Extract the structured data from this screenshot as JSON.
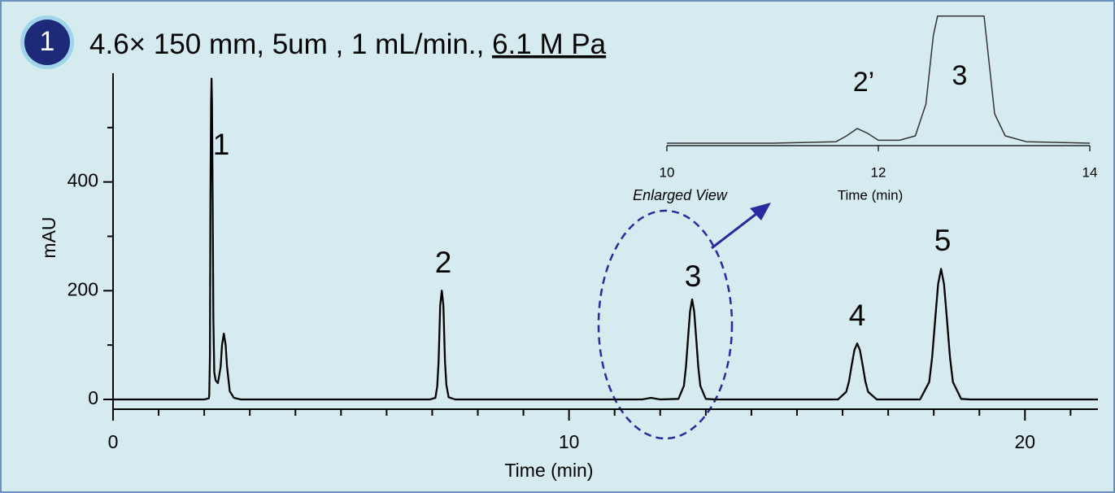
{
  "chart_data": [
    {
      "type": "line",
      "badge": "1",
      "title": "4.6× 150 mm, 5um , 1 mL/min., ",
      "title_underlined": "6.1 M Pa",
      "xlabel": "Time (min)",
      "ylabel": "mAU",
      "color": "#000000",
      "xlim": [
        0,
        21.6
      ],
      "xticks": [
        0,
        10,
        20
      ],
      "xminorticks": [
        1,
        2,
        3,
        4,
        5,
        6,
        7,
        8,
        9,
        11,
        12,
        13,
        14,
        15,
        16,
        17,
        18,
        19,
        21
      ],
      "ylim": [
        -18,
        600
      ],
      "yticks": [
        0,
        200,
        400
      ],
      "yminorticks": [
        100,
        300,
        500
      ],
      "annotations": [
        "1",
        "2",
        "3",
        "4",
        "5"
      ],
      "x": [
        0,
        2.0,
        2.1,
        2.11,
        2.125,
        2.135,
        2.15,
        2.16,
        2.17,
        2.185,
        2.2,
        2.22,
        2.25,
        2.3,
        2.36,
        2.39,
        2.43,
        2.47,
        2.5,
        2.56,
        2.65,
        2.8,
        6.95,
        7.07,
        7.11,
        7.14,
        7.175,
        7.21,
        7.245,
        7.28,
        7.31,
        7.36,
        7.5,
        11.6,
        11.8,
        12.0,
        12.4,
        12.52,
        12.565,
        12.61,
        12.655,
        12.7,
        12.745,
        12.79,
        12.835,
        12.88,
        13.0,
        13.2,
        15.9,
        16.08,
        16.14,
        16.2,
        16.26,
        16.32,
        16.38,
        16.44,
        16.5,
        16.56,
        16.75,
        17.7,
        17.9,
        17.965,
        18.03,
        18.095,
        18.16,
        18.225,
        18.29,
        18.355,
        18.42,
        18.6,
        18.8,
        21.6
      ],
      "values": [
        0,
        0,
        2,
        8,
        80,
        360,
        545,
        590,
        545,
        360,
        150,
        50,
        35,
        30,
        60,
        100,
        121,
        100,
        60,
        15,
        3,
        0,
        0,
        3,
        24,
        70,
        173,
        200,
        173,
        70,
        27,
        4,
        0,
        0,
        3,
        0,
        1,
        25,
        60,
        112,
        162,
        184,
        162,
        112,
        60,
        25,
        1,
        0,
        0,
        14,
        33,
        63,
        91,
        103,
        91,
        63,
        33,
        14,
        0,
        0,
        32,
        78,
        146,
        212,
        240,
        212,
        146,
        78,
        32,
        1,
        0,
        0
      ]
    },
    {
      "type": "line",
      "xlabel": "Time (min)",
      "callout": "Enlarged View",
      "color": "#333333",
      "xlim": [
        10,
        14
      ],
      "xticks": [
        10,
        12,
        14
      ],
      "ylim": [
        -0.5,
        26.3
      ],
      "annotations": [
        "2’",
        "3"
      ],
      "x": [
        10,
        11.0,
        11.6,
        11.7,
        11.8,
        11.9,
        12.0,
        12.2,
        12.35,
        12.45,
        12.52,
        12.56,
        13.0,
        13.03,
        13.1,
        13.2,
        13.4,
        14
      ],
      "values": [
        0,
        0,
        0.3,
        1.5,
        3,
        2,
        0.6,
        0.6,
        1.5,
        8,
        22,
        26,
        26,
        20,
        6,
        1.5,
        0.3,
        0
      ]
    }
  ]
}
